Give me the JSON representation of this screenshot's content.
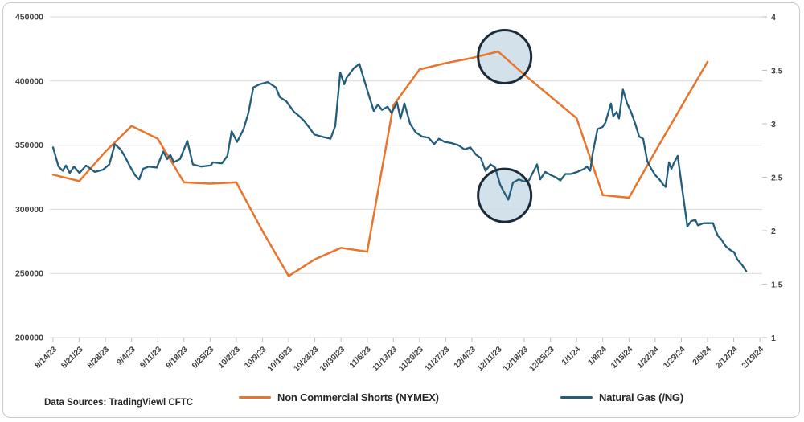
{
  "footer": {
    "source_note": "Data Sources: TradingViewl CFTC"
  },
  "legend": [
    {
      "label": "Non Commercial Shorts (NYMEX)",
      "color": "#E8752D"
    },
    {
      "label": "Natural Gas (/NG)",
      "color": "#225E7C"
    }
  ],
  "colors": {
    "gridline": "#D9D9D9",
    "tick": "#BFBFBF",
    "axis_text": "#3F3F3F",
    "circle_stroke": "#1B2B3A",
    "circle_fill": "#CBDCE8",
    "background": "#FFFFFF",
    "border": "#C9C9C9"
  },
  "chart_data": {
    "type": "line",
    "categories": [
      "8/14/23",
      "8/21/23",
      "8/28/23",
      "9/4/23",
      "9/11/23",
      "9/18/23",
      "9/25/23",
      "10/2/23",
      "10/9/23",
      "10/16/23",
      "10/23/23",
      "10/30/23",
      "11/6/23",
      "11/13/23",
      "11/20/23",
      "11/27/23",
      "12/4/23",
      "12/11/23",
      "12/18/23",
      "12/25/23",
      "1/1/24",
      "1/8/24",
      "1/15/24",
      "1/22/24",
      "1/29/24",
      "2/5/24",
      "2/12/24",
      "2/19/24"
    ],
    "left_axis": {
      "min": 200000,
      "max": 450000,
      "step": 50000,
      "tick_labels": [
        "450000",
        "400000",
        "350000",
        "300000",
        "250000",
        "200000"
      ]
    },
    "right_axis": {
      "min": 1,
      "max": 4,
      "step": 0.5,
      "tick_labels": [
        "4",
        "3.5",
        "3",
        "2.5",
        "2",
        "1.5",
        "1"
      ]
    },
    "grid": true,
    "legend_position": "bottom",
    "series": [
      {
        "name": "Non Commercial Shorts (NYMEX)",
        "axis": "left",
        "color": "#E8752D",
        "values": [
          327000,
          322000,
          345000,
          365000,
          355000,
          321000,
          320000,
          321000,
          283000,
          248000,
          261000,
          270000,
          267000,
          381000,
          409000,
          414000,
          418000,
          423000,
          405000,
          388000,
          371000,
          311000,
          309000,
          345000,
          380000,
          415000
        ]
      },
      {
        "name": "Natural Gas (/NG)",
        "axis": "right",
        "color": "#225E7C",
        "points": [
          [
            0,
            2.78
          ],
          [
            0.21,
            2.6
          ],
          [
            0.37,
            2.56
          ],
          [
            0.49,
            2.61
          ],
          [
            0.64,
            2.54
          ],
          [
            0.8,
            2.6
          ],
          [
            1.01,
            2.54
          ],
          [
            1.26,
            2.61
          ],
          [
            1.6,
            2.55
          ],
          [
            1.9,
            2.57
          ],
          [
            2.15,
            2.62
          ],
          [
            2.36,
            2.81
          ],
          [
            2.58,
            2.76
          ],
          [
            2.73,
            2.7
          ],
          [
            2.92,
            2.61
          ],
          [
            3.13,
            2.52
          ],
          [
            3.29,
            2.48
          ],
          [
            3.44,
            2.58
          ],
          [
            3.66,
            2.6
          ],
          [
            3.96,
            2.59
          ],
          [
            4.21,
            2.74
          ],
          [
            4.36,
            2.67
          ],
          [
            4.48,
            2.71
          ],
          [
            4.61,
            2.64
          ],
          [
            4.85,
            2.67
          ],
          [
            5.13,
            2.84
          ],
          [
            5.34,
            2.62
          ],
          [
            5.65,
            2.6
          ],
          [
            6.02,
            2.61
          ],
          [
            6.11,
            2.64
          ],
          [
            6.45,
            2.63
          ],
          [
            6.66,
            2.7
          ],
          [
            6.82,
            2.93
          ],
          [
            7.03,
            2.83
          ],
          [
            7.28,
            2.95
          ],
          [
            7.46,
            3.1
          ],
          [
            7.65,
            3.34
          ],
          [
            7.89,
            3.37
          ],
          [
            8.2,
            3.39
          ],
          [
            8.51,
            3.34
          ],
          [
            8.66,
            3.25
          ],
          [
            8.91,
            3.21
          ],
          [
            9.21,
            3.11
          ],
          [
            9.37,
            3.08
          ],
          [
            9.58,
            3.03
          ],
          [
            9.77,
            2.97
          ],
          [
            9.98,
            2.9
          ],
          [
            10.26,
            2.88
          ],
          [
            10.6,
            2.86
          ],
          [
            10.78,
            2.98
          ],
          [
            10.97,
            3.48
          ],
          [
            11.12,
            3.37
          ],
          [
            11.21,
            3.43
          ],
          [
            11.49,
            3.52
          ],
          [
            11.7,
            3.56
          ],
          [
            12.01,
            3.31
          ],
          [
            12.25,
            3.12
          ],
          [
            12.41,
            3.18
          ],
          [
            12.56,
            3.13
          ],
          [
            12.78,
            3.16
          ],
          [
            12.93,
            3.1
          ],
          [
            13.14,
            3.2
          ],
          [
            13.27,
            3.05
          ],
          [
            13.42,
            3.19
          ],
          [
            13.64,
            3.0
          ],
          [
            13.85,
            2.92
          ],
          [
            14.1,
            2.88
          ],
          [
            14.34,
            2.87
          ],
          [
            14.56,
            2.81
          ],
          [
            14.74,
            2.86
          ],
          [
            14.96,
            2.83
          ],
          [
            15.2,
            2.82
          ],
          [
            15.48,
            2.8
          ],
          [
            15.72,
            2.76
          ],
          [
            15.94,
            2.78
          ],
          [
            16.16,
            2.71
          ],
          [
            16.34,
            2.68
          ],
          [
            16.52,
            2.56
          ],
          [
            16.71,
            2.62
          ],
          [
            16.89,
            2.59
          ],
          [
            17.08,
            2.43
          ],
          [
            17.23,
            2.36
          ],
          [
            17.39,
            2.29
          ],
          [
            17.57,
            2.45
          ],
          [
            17.79,
            2.48
          ],
          [
            18.0,
            2.46
          ],
          [
            18.18,
            2.47
          ],
          [
            18.34,
            2.55
          ],
          [
            18.49,
            2.62
          ],
          [
            18.61,
            2.48
          ],
          [
            18.8,
            2.55
          ],
          [
            19.01,
            2.52
          ],
          [
            19.2,
            2.5
          ],
          [
            19.38,
            2.47
          ],
          [
            19.57,
            2.53
          ],
          [
            19.78,
            2.53
          ],
          [
            20.02,
            2.55
          ],
          [
            20.3,
            2.58
          ],
          [
            20.39,
            2.6
          ],
          [
            20.52,
            2.56
          ],
          [
            20.61,
            2.72
          ],
          [
            20.8,
            2.95
          ],
          [
            20.99,
            2.97
          ],
          [
            21.1,
            3.01
          ],
          [
            21.31,
            3.19
          ],
          [
            21.4,
            3.07
          ],
          [
            21.53,
            3.11
          ],
          [
            21.62,
            3.05
          ],
          [
            21.77,
            3.32
          ],
          [
            21.93,
            3.19
          ],
          [
            22.08,
            3.11
          ],
          [
            22.24,
            3.0
          ],
          [
            22.39,
            2.88
          ],
          [
            22.54,
            2.86
          ],
          [
            22.7,
            2.65
          ],
          [
            22.85,
            2.58
          ],
          [
            23.0,
            2.52
          ],
          [
            23.16,
            2.48
          ],
          [
            23.31,
            2.43
          ],
          [
            23.4,
            2.41
          ],
          [
            23.53,
            2.64
          ],
          [
            23.62,
            2.58
          ],
          [
            23.71,
            2.63
          ],
          [
            23.86,
            2.7
          ],
          [
            24.02,
            2.41
          ],
          [
            24.14,
            2.2
          ],
          [
            24.23,
            2.04
          ],
          [
            24.38,
            2.09
          ],
          [
            24.54,
            2.1
          ],
          [
            24.63,
            2.05
          ],
          [
            24.85,
            2.07
          ],
          [
            25.06,
            2.07
          ],
          [
            25.21,
            2.07
          ],
          [
            25.31,
            2.0
          ],
          [
            25.4,
            1.95
          ],
          [
            25.52,
            1.92
          ],
          [
            25.71,
            1.85
          ],
          [
            25.92,
            1.81
          ],
          [
            26.01,
            1.8
          ],
          [
            26.14,
            1.73
          ],
          [
            26.32,
            1.68
          ],
          [
            26.48,
            1.62
          ]
        ]
      }
    ],
    "annotations": [
      {
        "type": "circle",
        "x_index": 17.25,
        "axis": "left",
        "value": 419000,
        "radius": 33
      },
      {
        "type": "circle",
        "x_index": 17.25,
        "axis": "right",
        "value": 2.33,
        "radius": 33
      }
    ]
  }
}
